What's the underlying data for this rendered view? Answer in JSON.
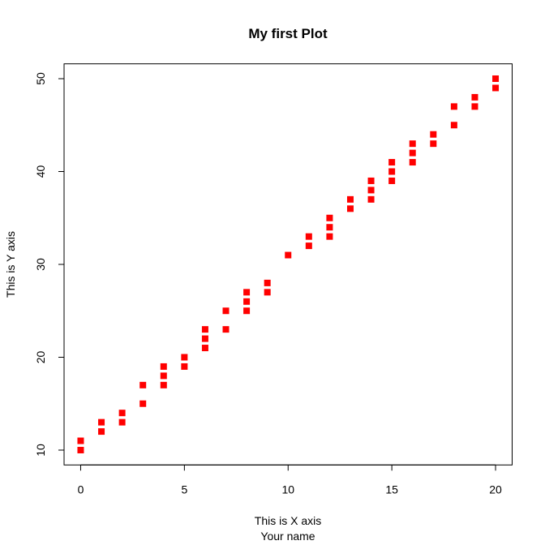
{
  "chart_data": {
    "type": "scatter",
    "title": "My first Plot",
    "xlabel": "This is X axis",
    "subtitle": "Your name",
    "ylabel": "This is Y axis",
    "x": [
      0,
      0,
      1,
      1,
      2,
      2,
      3,
      3,
      4,
      4,
      4,
      5,
      5,
      6,
      6,
      6,
      7,
      7,
      8,
      8,
      8,
      9,
      9,
      10,
      11,
      11,
      12,
      12,
      12,
      13,
      13,
      14,
      14,
      14,
      15,
      15,
      15,
      16,
      16,
      16,
      17,
      17,
      18,
      18,
      19,
      19,
      20,
      20
    ],
    "y": [
      11,
      10,
      13,
      12,
      14,
      13,
      17,
      15,
      19,
      18,
      17,
      20,
      19,
      23,
      22,
      21,
      25,
      23,
      27,
      26,
      25,
      28,
      27,
      31,
      33,
      32,
      35,
      34,
      33,
      37,
      36,
      39,
      38,
      37,
      41,
      40,
      39,
      43,
      42,
      41,
      44,
      43,
      47,
      45,
      48,
      47,
      50,
      49
    ],
    "color": "#ff0000",
    "xlim": [
      -0.8,
      20.8
    ],
    "ylim": [
      8.4,
      51.6
    ],
    "xticks": [
      0,
      5,
      10,
      15,
      20
    ],
    "yticks": [
      10,
      20,
      30,
      40,
      50
    ]
  }
}
